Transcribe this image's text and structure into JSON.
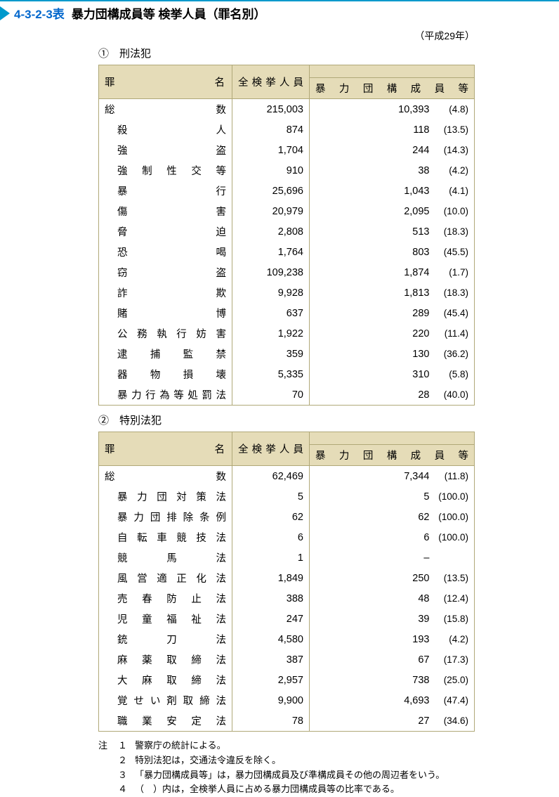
{
  "header": {
    "table_number": "4-3-2-3表",
    "title": "暴力団構成員等 検挙人員（罪名別）",
    "year": "（平成29年）"
  },
  "columns": {
    "crime": "罪　　　　　名",
    "total": "全 検 挙 人 員",
    "gang": "暴 力 団 構 成 員 等"
  },
  "section1": {
    "label": "①　刑法犯",
    "rows": [
      {
        "name": "総　　　　　数",
        "total": "215,003",
        "gang": "10,393",
        "pct": "(4.8)",
        "is_total": true
      },
      {
        "name": "殺　　　　　人",
        "total": "874",
        "gang": "118",
        "pct": "(13.5)"
      },
      {
        "name": "強　　　　　盗",
        "total": "1,704",
        "gang": "244",
        "pct": "(14.3)"
      },
      {
        "name": "強 制 性 交 等",
        "total": "910",
        "gang": "38",
        "pct": "(4.2)"
      },
      {
        "name": "暴　　　　　行",
        "total": "25,696",
        "gang": "1,043",
        "pct": "(4.1)"
      },
      {
        "name": "傷　　　　　害",
        "total": "20,979",
        "gang": "2,095",
        "pct": "(10.0)"
      },
      {
        "name": "脅　　　　　迫",
        "total": "2,808",
        "gang": "513",
        "pct": "(18.3)"
      },
      {
        "name": "恐　　　　　喝",
        "total": "1,764",
        "gang": "803",
        "pct": "(45.5)"
      },
      {
        "name": "窃　　　　　盗",
        "total": "109,238",
        "gang": "1,874",
        "pct": "(1.7)"
      },
      {
        "name": "詐　　　　　欺",
        "total": "9,928",
        "gang": "1,813",
        "pct": "(18.3)"
      },
      {
        "name": "賭　　　　　博",
        "total": "637",
        "gang": "289",
        "pct": "(45.4)"
      },
      {
        "name": "公 務 執 行 妨 害",
        "total": "1,922",
        "gang": "220",
        "pct": "(11.4)"
      },
      {
        "name": "逮　捕　監　禁",
        "total": "359",
        "gang": "130",
        "pct": "(36.2)"
      },
      {
        "name": "器　物　損　壊",
        "total": "5,335",
        "gang": "310",
        "pct": "(5.8)"
      },
      {
        "name": "暴力行為等処罰法",
        "total": "70",
        "gang": "28",
        "pct": "(40.0)"
      }
    ]
  },
  "section2": {
    "label": "②　特別法犯",
    "rows": [
      {
        "name": "総　　　　　数",
        "total": "62,469",
        "gang": "7,344",
        "pct": "(11.8)",
        "is_total": true
      },
      {
        "name": "暴 力 団 対 策 法",
        "total": "5",
        "gang": "5",
        "pct": "(100.0)"
      },
      {
        "name": "暴力団排除条例",
        "total": "62",
        "gang": "62",
        "pct": "(100.0)"
      },
      {
        "name": "自転車競技法",
        "total": "6",
        "gang": "6",
        "pct": "(100.0)"
      },
      {
        "name": "競　　馬　　法",
        "total": "1",
        "gang": "–",
        "pct": ""
      },
      {
        "name": "風 営 適 正 化 法",
        "total": "1,849",
        "gang": "250",
        "pct": "(13.5)"
      },
      {
        "name": "売 春 防 止 法",
        "total": "388",
        "gang": "48",
        "pct": "(12.4)"
      },
      {
        "name": "児 童 福 祉 法",
        "total": "247",
        "gang": "39",
        "pct": "(15.8)"
      },
      {
        "name": "銃　　刀　　法",
        "total": "4,580",
        "gang": "193",
        "pct": "(4.2)"
      },
      {
        "name": "麻 薬 取 締 法",
        "total": "387",
        "gang": "67",
        "pct": "(17.3)"
      },
      {
        "name": "大 麻 取 締 法",
        "total": "2,957",
        "gang": "738",
        "pct": "(25.0)"
      },
      {
        "name": "覚せい剤取締法",
        "total": "9,900",
        "gang": "4,693",
        "pct": "(47.4)"
      },
      {
        "name": "職 業 安 定 法",
        "total": "78",
        "gang": "27",
        "pct": "(34.6)"
      }
    ]
  },
  "notes": {
    "label": "注",
    "items": [
      {
        "n": "１",
        "text": "警察庁の統計による。"
      },
      {
        "n": "２",
        "text": "特別法犯は，交通法令違反を除く。"
      },
      {
        "n": "３",
        "text": "「暴力団構成員等」は，暴力団構成員及び準構成員その他の周辺者をいう。"
      },
      {
        "n": "４",
        "text": "（　）内は，全検挙人員に占める暴力団構成員等の比率である。"
      }
    ]
  },
  "style": {
    "header_border_color": "#0099cc",
    "table_number_color": "#0066cc",
    "th_bg": "#e5dcb8",
    "border_color": "#b0a878",
    "font_size_body": 14.5,
    "font_size_notes": 13
  }
}
